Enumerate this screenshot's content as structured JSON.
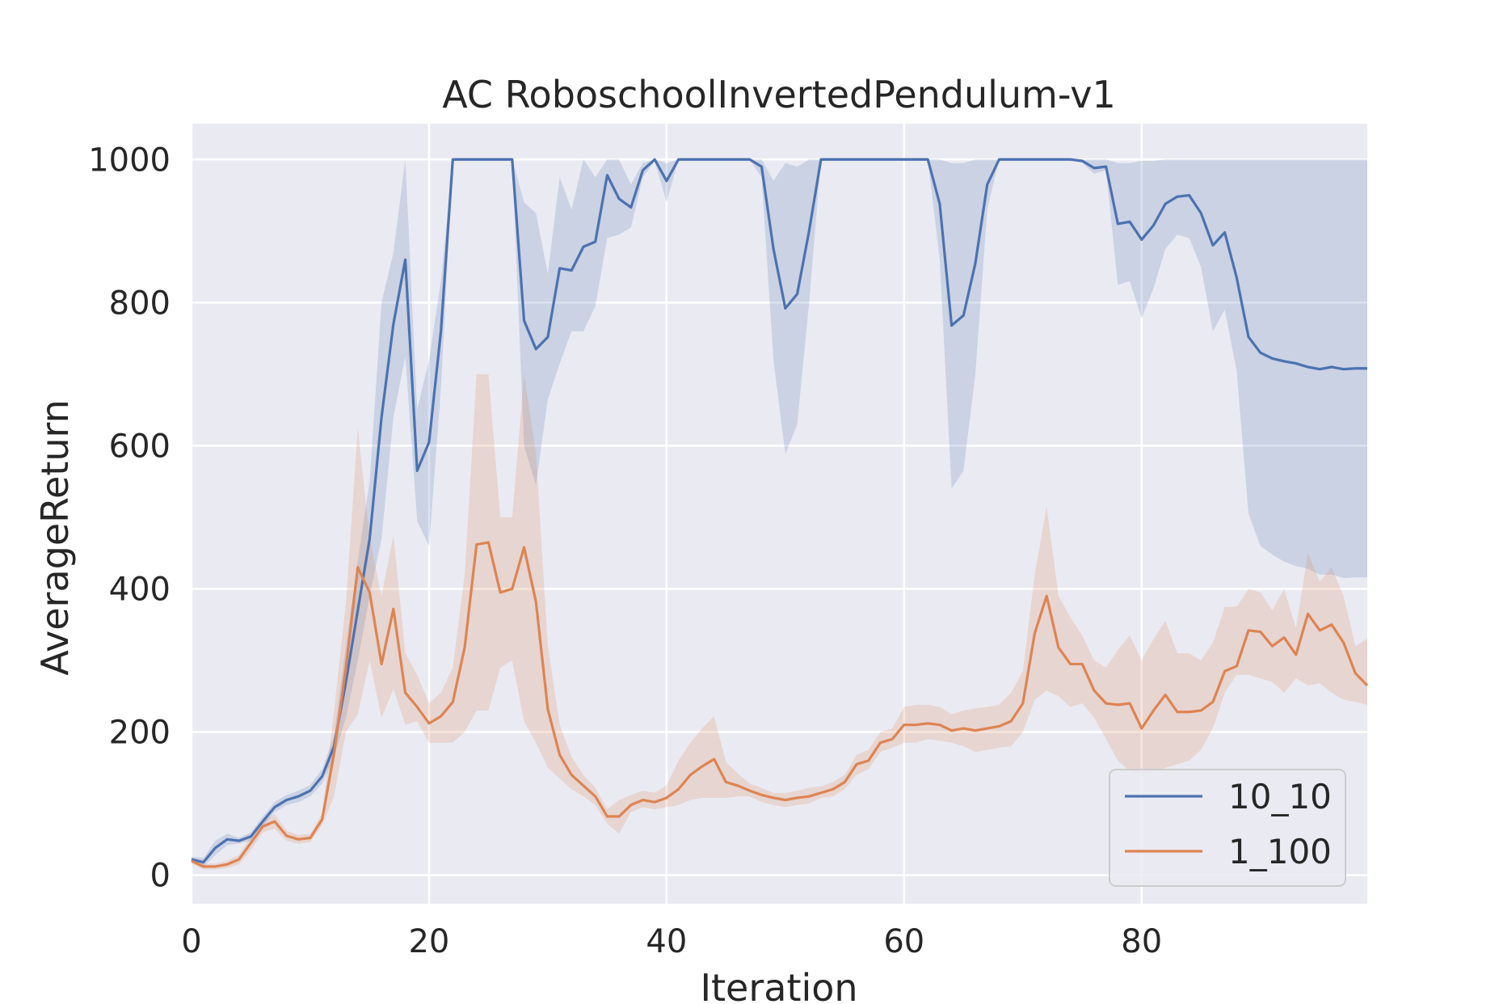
{
  "chart_data": {
    "type": "line",
    "title": "AC RoboschoolInvertedPendulum-v1",
    "xlabel": "Iteration",
    "ylabel": "AverageReturn",
    "xlim": [
      0,
      99
    ],
    "ylim": [
      -40,
      1050
    ],
    "xticks": [
      0,
      20,
      40,
      60,
      80
    ],
    "yticks": [
      0,
      200,
      400,
      600,
      800,
      1000
    ],
    "grid": true,
    "legend_position": "lower-right",
    "colors": {
      "plot_bg": "#eaeaf2",
      "grid": "#ffffff",
      "series_10_10": "#4c72b0",
      "series_1_100": "#dd8452"
    },
    "series": [
      {
        "name": "10_10",
        "color": "#4c72b0",
        "mean": [
          22,
          18,
          38,
          50,
          48,
          54,
          75,
          95,
          105,
          110,
          118,
          138,
          180,
          270,
          370,
          470,
          640,
          770,
          860,
          565,
          605,
          760,
          1000,
          1000,
          1000,
          1000,
          1000,
          1000,
          775,
          735,
          752,
          848,
          845,
          878,
          885,
          978,
          945,
          933,
          985,
          1000,
          970,
          1000,
          1000,
          1000,
          1000,
          1000,
          1000,
          1000,
          990,
          875,
          792,
          812,
          900,
          1000,
          1000,
          1000,
          1000,
          1000,
          1000,
          1000,
          1000,
          1000,
          1000,
          938,
          768,
          782,
          855,
          965,
          1000,
          1000,
          1000,
          1000,
          1000,
          1000,
          1000,
          998,
          988,
          990,
          910,
          913,
          888,
          908,
          938,
          948,
          950,
          925,
          880,
          898,
          835,
          752,
          730,
          722,
          718,
          715,
          710,
          707,
          710,
          707,
          708,
          708
        ],
        "lower": [
          18,
          12,
          28,
          42,
          44,
          48,
          68,
          88,
          98,
          102,
          110,
          128,
          165,
          220,
          300,
          390,
          470,
          640,
          725,
          495,
          460,
          680,
          1000,
          1000,
          1000,
          1000,
          1000,
          1000,
          600,
          545,
          665,
          715,
          760,
          760,
          795,
          890,
          895,
          905,
          975,
          998,
          940,
          1000,
          1000,
          1000,
          1000,
          1000,
          1000,
          1000,
          975,
          720,
          588,
          630,
          800,
          1000,
          1000,
          1000,
          1000,
          1000,
          1000,
          1000,
          1000,
          1000,
          1000,
          860,
          540,
          565,
          700,
          930,
          1000,
          1000,
          1000,
          1000,
          1000,
          1000,
          1000,
          995,
          980,
          985,
          825,
          830,
          778,
          820,
          875,
          895,
          890,
          850,
          760,
          790,
          705,
          505,
          460,
          448,
          438,
          432,
          428,
          420,
          420,
          415,
          416,
          416
        ],
        "upper": [
          26,
          24,
          48,
          58,
          52,
          60,
          82,
          102,
          112,
          118,
          126,
          148,
          195,
          320,
          440,
          550,
          800,
          870,
          1000,
          650,
          720,
          830,
          1000,
          1000,
          1000,
          1000,
          1000,
          1000,
          940,
          925,
          840,
          975,
          930,
          1000,
          975,
          1000,
          1000,
          965,
          995,
          1000,
          995,
          1000,
          1000,
          1000,
          1000,
          1000,
          1000,
          1000,
          1000,
          970,
          995,
          990,
          1000,
          1000,
          1000,
          1000,
          1000,
          1000,
          1000,
          1000,
          1000,
          1000,
          1000,
          1000,
          995,
          995,
          1000,
          1000,
          1000,
          1000,
          1000,
          1000,
          1000,
          1000,
          1000,
          1000,
          1000,
          1000,
          995,
          995,
          998,
          998,
          1000,
          1000,
          1000,
          1000,
          1000,
          1000,
          1000,
          1000,
          1000,
          1000,
          1000,
          1000,
          1000,
          1000,
          1000,
          1000,
          1000,
          1000
        ]
      },
      {
        "name": "1_100",
        "color": "#dd8452",
        "mean": [
          20,
          12,
          12,
          15,
          22,
          45,
          68,
          75,
          55,
          50,
          52,
          78,
          170,
          290,
          430,
          395,
          295,
          372,
          255,
          235,
          212,
          222,
          242,
          318,
          462,
          465,
          395,
          400,
          458,
          382,
          232,
          168,
          140,
          125,
          110,
          82,
          82,
          98,
          105,
          102,
          108,
          120,
          140,
          152,
          162,
          130,
          125,
          118,
          112,
          108,
          105,
          108,
          110,
          115,
          120,
          130,
          155,
          160,
          185,
          190,
          210,
          210,
          212,
          210,
          202,
          205,
          202,
          205,
          208,
          215,
          240,
          338,
          390,
          318,
          295,
          295,
          258,
          240,
          238,
          240,
          205,
          230,
          252,
          228,
          228,
          230,
          242,
          285,
          292,
          342,
          340,
          320,
          332,
          308,
          365,
          342,
          350,
          325,
          282,
          265
        ],
        "lower": [
          16,
          8,
          8,
          10,
          15,
          35,
          60,
          65,
          48,
          44,
          46,
          70,
          110,
          200,
          225,
          300,
          220,
          260,
          210,
          215,
          185,
          185,
          185,
          200,
          230,
          230,
          290,
          300,
          215,
          185,
          150,
          135,
          120,
          110,
          98,
          72,
          58,
          88,
          95,
          92,
          95,
          98,
          105,
          108,
          108,
          108,
          110,
          110,
          102,
          98,
          95,
          98,
          100,
          108,
          110,
          120,
          140,
          148,
          172,
          178,
          185,
          185,
          190,
          188,
          185,
          180,
          172,
          175,
          178,
          180,
          200,
          245,
          258,
          250,
          235,
          240,
          220,
          190,
          160,
          145,
          140,
          145,
          150,
          155,
          160,
          175,
          205,
          255,
          280,
          280,
          275,
          270,
          255,
          275,
          265,
          268,
          255,
          245,
          242,
          238
        ],
        "upper": [
          24,
          16,
          16,
          20,
          28,
          55,
          76,
          85,
          62,
          56,
          58,
          86,
          230,
          380,
          625,
          470,
          390,
          475,
          310,
          280,
          240,
          255,
          290,
          420,
          700,
          700,
          500,
          500,
          700,
          590,
          320,
          210,
          165,
          140,
          122,
          92,
          105,
          112,
          118,
          115,
          125,
          160,
          185,
          205,
          222,
          158,
          142,
          128,
          122,
          115,
          115,
          118,
          122,
          124,
          130,
          140,
          168,
          175,
          200,
          205,
          235,
          238,
          238,
          235,
          225,
          230,
          233,
          235,
          238,
          255,
          285,
          420,
          515,
          390,
          360,
          335,
          300,
          290,
          315,
          335,
          300,
          330,
          355,
          310,
          310,
          300,
          325,
          375,
          375,
          400,
          395,
          370,
          400,
          345,
          450,
          410,
          430,
          390,
          320,
          330
        ]
      }
    ]
  }
}
